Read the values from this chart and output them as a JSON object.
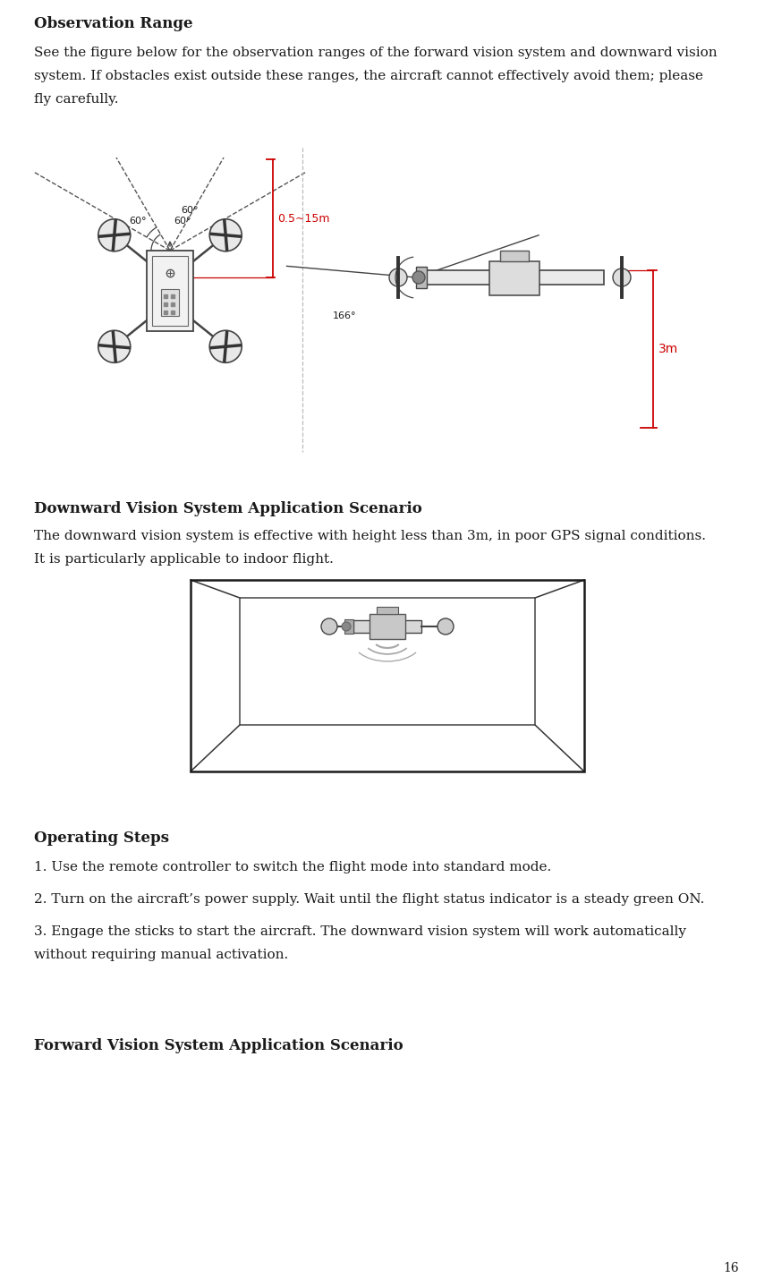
{
  "page_number": "16",
  "bg_color": "#ffffff",
  "text_color": "#1a1a1a",
  "red_color": "#cc0000",
  "dark_color": "#444444",
  "title1": "Observation Range",
  "para1_lines": [
    "See the figure below for the observation ranges of the forward vision system and downward vision",
    "system. If obstacles exist outside these ranges, the aircraft cannot effectively avoid them; please",
    "fly carefully."
  ],
  "title2": "Downward Vision System Application Scenario",
  "para2_lines": [
    "The downward vision system is effective with height less than 3m, in poor GPS signal conditions.",
    "It is particularly applicable to indoor flight."
  ],
  "title3": "Operating Steps",
  "steps": [
    "1. Use the remote controller to switch the flight mode into standard mode.",
    "2. Turn on the aircraft’s power supply. Wait until the flight status indicator is a steady green ON.",
    "3. Engage the sticks to start the aircraft. The downward vision system will work automatically",
    "without requiring manual activation."
  ],
  "title4": "Forward Vision System Application Scenario",
  "label_60_top": "60°",
  "label_60_left": "60°",
  "label_60_right": "60°",
  "label_distance": "0.5~15m",
  "label_166": "166°",
  "label_3m": "3m",
  "fs_title": 12,
  "fs_body": 11,
  "fs_small": 8,
  "ml": 38
}
